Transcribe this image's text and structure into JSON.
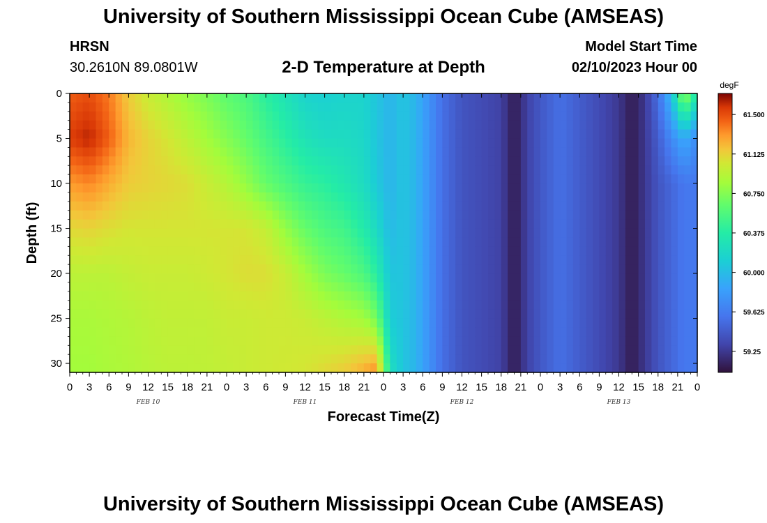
{
  "header": {
    "title": "University of Southern Mississippi Ocean Cube (AMSEAS)",
    "station": "HRSN",
    "coords": "30.2610N  89.0801W",
    "subtitle": "2-D Temperature at Depth",
    "model_start_label": "Model Start Time",
    "model_start_value": "02/10/2023 Hour 00"
  },
  "footer": {
    "title": "University of Southern Mississippi Ocean Cube (AMSEAS)"
  },
  "chart_data": {
    "type": "heatmap",
    "title": "2-D Temperature at Depth",
    "xlabel": "Forecast Time(Z)",
    "ylabel": "Depth (ft)",
    "x_units": "hours since 02/10/2023 00Z",
    "xlim": [
      0,
      96
    ],
    "ylim": [
      0,
      31
    ],
    "x_ticks": [
      0,
      3,
      6,
      9,
      12,
      15,
      18,
      21,
      24,
      27,
      30,
      33,
      36,
      39,
      42,
      45,
      48,
      51,
      54,
      57,
      60,
      63,
      66,
      69,
      72,
      75,
      78,
      81,
      84,
      87,
      90,
      93,
      96
    ],
    "x_tick_labels": [
      "0",
      "3",
      "6",
      "9",
      "12",
      "15",
      "18",
      "21",
      "0",
      "3",
      "6",
      "9",
      "12",
      "15",
      "18",
      "21",
      "0",
      "3",
      "6",
      "9",
      "12",
      "15",
      "18",
      "21",
      "0",
      "3",
      "6",
      "9",
      "12",
      "15",
      "18",
      "21",
      "0"
    ],
    "date_labels": [
      {
        "hour": 12,
        "text": "FEB 10"
      },
      {
        "hour": 36,
        "text": "FEB 11"
      },
      {
        "hour": 60,
        "text": "FEB 12"
      },
      {
        "hour": 84,
        "text": "FEB 13"
      }
    ],
    "y_ticks": [
      0,
      5,
      10,
      15,
      20,
      25,
      30
    ],
    "y_tick_labels": [
      "0",
      "5",
      "10",
      "15",
      "20",
      "25",
      "30"
    ],
    "colorbar": {
      "unit": "degF",
      "vmin": 59.05,
      "vmax": 61.7,
      "ticks": [
        61.5,
        61.125,
        60.75,
        60.375,
        60.0,
        59.625,
        59.25
      ],
      "tick_labels": [
        "61.500",
        "61.125",
        "60.750",
        "60.375",
        "60.000",
        "59.625",
        "59.25"
      ],
      "colormap": [
        [
          0.0,
          "#30123b"
        ],
        [
          0.1,
          "#4145ab"
        ],
        [
          0.2,
          "#4675ed"
        ],
        [
          0.3,
          "#39a2fc"
        ],
        [
          0.4,
          "#1bcfd4"
        ],
        [
          0.5,
          "#24eca6"
        ],
        [
          0.6,
          "#61fc6c"
        ],
        [
          0.68,
          "#a4fc3b"
        ],
        [
          0.75,
          "#d1e834"
        ],
        [
          0.8,
          "#f3c63a"
        ],
        [
          0.85,
          "#fe9b2d"
        ],
        [
          0.9,
          "#f36315"
        ],
        [
          0.95,
          "#d93806"
        ],
        [
          1.0,
          "#7a0403"
        ]
      ]
    },
    "depths_ft": [
      0,
      5,
      10,
      15,
      20,
      25,
      31
    ],
    "columns": [
      {
        "hour": 0,
        "temps": [
          61.45,
          61.55,
          61.3,
          61.1,
          60.95,
          60.88,
          60.85
        ]
      },
      {
        "hour": 3,
        "temps": [
          61.5,
          61.62,
          61.35,
          61.12,
          60.95,
          60.88,
          60.85
        ]
      },
      {
        "hour": 6,
        "temps": [
          61.38,
          61.45,
          61.25,
          61.08,
          60.95,
          60.9,
          60.88
        ]
      },
      {
        "hour": 9,
        "temps": [
          61.15,
          61.22,
          61.15,
          61.05,
          60.98,
          60.92,
          60.9
        ]
      },
      {
        "hour": 12,
        "temps": [
          61.0,
          61.12,
          61.12,
          61.05,
          61.0,
          60.95,
          60.93
        ]
      },
      {
        "hour": 15,
        "temps": [
          60.9,
          61.05,
          61.1,
          61.05,
          61.0,
          60.97,
          60.95
        ]
      },
      {
        "hour": 18,
        "temps": [
          60.8,
          60.95,
          61.08,
          61.05,
          61.0,
          60.97,
          60.95
        ]
      },
      {
        "hour": 21,
        "temps": [
          60.72,
          60.85,
          61.0,
          61.05,
          61.02,
          60.97,
          60.96
        ]
      },
      {
        "hour": 24,
        "temps": [
          60.62,
          60.75,
          60.92,
          61.05,
          61.05,
          61.0,
          60.98
        ]
      },
      {
        "hour": 27,
        "temps": [
          60.55,
          60.65,
          60.8,
          61.05,
          61.08,
          61.0,
          61.0
        ]
      },
      {
        "hour": 30,
        "temps": [
          60.4,
          60.52,
          60.65,
          60.98,
          61.08,
          61.02,
          61.02
        ]
      },
      {
        "hour": 33,
        "temps": [
          60.28,
          60.4,
          60.55,
          60.8,
          61.0,
          61.02,
          61.03
        ]
      },
      {
        "hour": 36,
        "temps": [
          60.15,
          60.28,
          60.45,
          60.65,
          60.85,
          61.0,
          61.05
        ]
      },
      {
        "hour": 39,
        "temps": [
          60.12,
          60.22,
          60.4,
          60.55,
          60.72,
          60.95,
          61.1
        ]
      },
      {
        "hour": 42,
        "temps": [
          60.15,
          60.22,
          60.32,
          60.5,
          60.65,
          60.9,
          61.15
        ]
      },
      {
        "hour": 45,
        "temps": [
          60.15,
          60.18,
          60.22,
          60.35,
          60.55,
          60.85,
          61.25
        ]
      },
      {
        "hour": 47,
        "temps": [
          60.05,
          60.05,
          60.08,
          60.2,
          60.38,
          60.7,
          61.35
        ]
      },
      {
        "hour": 49,
        "temps": [
          59.95,
          59.95,
          59.95,
          59.98,
          60.05,
          60.1,
          60.25
        ]
      },
      {
        "hour": 51,
        "temps": [
          60.05,
          60.05,
          60.05,
          60.05,
          60.05,
          60.05,
          60.05
        ]
      },
      {
        "hour": 53,
        "temps": [
          59.95,
          59.95,
          59.95,
          59.95,
          59.95,
          59.95,
          59.95
        ]
      },
      {
        "hour": 55,
        "temps": [
          59.75,
          59.75,
          59.75,
          59.75,
          59.75,
          59.75,
          59.75
        ]
      },
      {
        "hour": 57,
        "temps": [
          59.55,
          59.55,
          59.55,
          59.55,
          59.55,
          59.55,
          59.55
        ]
      },
      {
        "hour": 60,
        "temps": [
          59.4,
          59.4,
          59.4,
          59.4,
          59.4,
          59.4,
          59.4
        ]
      },
      {
        "hour": 63,
        "temps": [
          59.35,
          59.35,
          59.35,
          59.35,
          59.35,
          59.35,
          59.35
        ]
      },
      {
        "hour": 66,
        "temps": [
          59.3,
          59.3,
          59.3,
          59.3,
          59.3,
          59.3,
          59.3
        ]
      },
      {
        "hour": 68,
        "temps": [
          59.1,
          59.1,
          59.1,
          59.1,
          59.1,
          59.1,
          59.1
        ]
      },
      {
        "hour": 70,
        "temps": [
          59.3,
          59.3,
          59.3,
          59.3,
          59.3,
          59.3,
          59.3
        ]
      },
      {
        "hour": 72,
        "temps": [
          59.42,
          59.42,
          59.42,
          59.42,
          59.42,
          59.42,
          59.42
        ]
      },
      {
        "hour": 75,
        "temps": [
          59.55,
          59.55,
          59.55,
          59.55,
          59.55,
          59.55,
          59.55
        ]
      },
      {
        "hour": 78,
        "temps": [
          59.45,
          59.45,
          59.45,
          59.45,
          59.45,
          59.45,
          59.45
        ]
      },
      {
        "hour": 81,
        "temps": [
          59.35,
          59.35,
          59.35,
          59.35,
          59.35,
          59.35,
          59.35
        ]
      },
      {
        "hour": 84,
        "temps": [
          59.25,
          59.25,
          59.25,
          59.25,
          59.25,
          59.25,
          59.25
        ]
      },
      {
        "hour": 86,
        "temps": [
          59.1,
          59.1,
          59.1,
          59.1,
          59.1,
          59.1,
          59.1
        ]
      },
      {
        "hour": 88,
        "temps": [
          59.25,
          59.25,
          59.25,
          59.25,
          59.25,
          59.25,
          59.25
        ]
      },
      {
        "hour": 90,
        "temps": [
          59.55,
          59.45,
          59.4,
          59.4,
          59.4,
          59.4,
          59.4
        ]
      },
      {
        "hour": 92,
        "temps": [
          60.0,
          59.7,
          59.5,
          59.5,
          59.5,
          59.5,
          59.5
        ]
      },
      {
        "hour": 94,
        "temps": [
          60.85,
          59.9,
          59.6,
          59.6,
          59.6,
          59.6,
          59.6
        ]
      },
      {
        "hour": 96,
        "temps": [
          60.3,
          59.7,
          59.6,
          59.6,
          59.6,
          59.6,
          59.6
        ]
      }
    ]
  }
}
